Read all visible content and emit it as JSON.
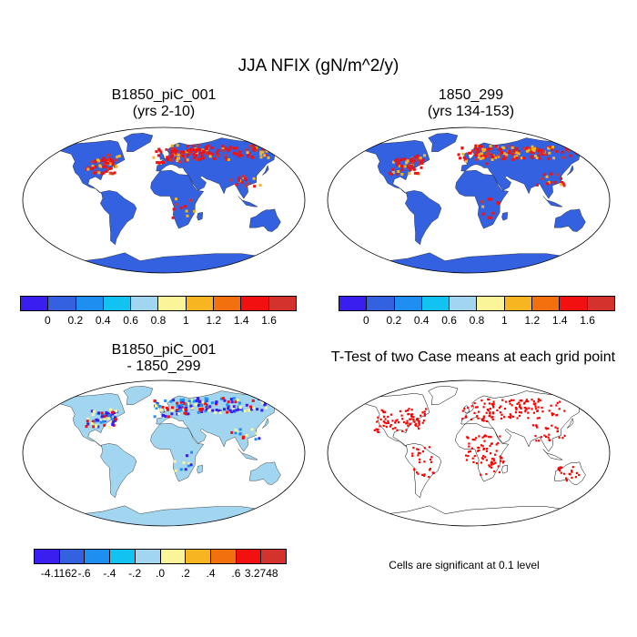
{
  "figure": {
    "title": "JJA NFIX (gN/m^2/y)",
    "note": "Cells are significant at 0.1 level"
  },
  "panels": [
    {
      "title_line1": "B1850_piC_001",
      "title_line2": "(yrs 2-10)",
      "kind": "field"
    },
    {
      "title_line1": "1850_299",
      "title_line2": "(yrs 134-153)",
      "kind": "field"
    },
    {
      "title_line1": "B1850_piC_001",
      "title_line2": "- 1850_299",
      "kind": "difference"
    },
    {
      "title_line1": "T-Test of two Case means at each grid point",
      "title_line2": "",
      "kind": "significance"
    }
  ],
  "colorbars": {
    "field": {
      "colors": [
        "#3a1ef0",
        "#3461e0",
        "#1e8ff0",
        "#12c2f0",
        "#a2d6f0",
        "#fbf59a",
        "#f7b521",
        "#f2700e",
        "#f21010",
        "#d3332c"
      ],
      "labels": [
        "0",
        "0.2",
        "0.4",
        "0.6",
        "0.8",
        "1",
        "1.2",
        "1.4",
        "1.6"
      ]
    },
    "difference": {
      "colors": [
        "#3a1ef0",
        "#3461e0",
        "#1e8ff0",
        "#12c2f0",
        "#a2d6f0",
        "#fbf59a",
        "#f7b521",
        "#f2700e",
        "#f21010",
        "#d3332c"
      ],
      "labels": [
        "-4.1162",
        "-.6",
        "-.4",
        "-.2",
        ".0",
        ".2",
        ".4",
        ".6",
        "3.2748"
      ]
    }
  },
  "map_colors": {
    "ocean": "#ffffff",
    "land_field": "#3461e0",
    "land_diff": "#a2d6f0",
    "high": "#f21010",
    "mid": "#f7b521",
    "low_diff": "#3a1ef0",
    "pos_diff": "#fbf59a",
    "signif": "#ff0000"
  }
}
